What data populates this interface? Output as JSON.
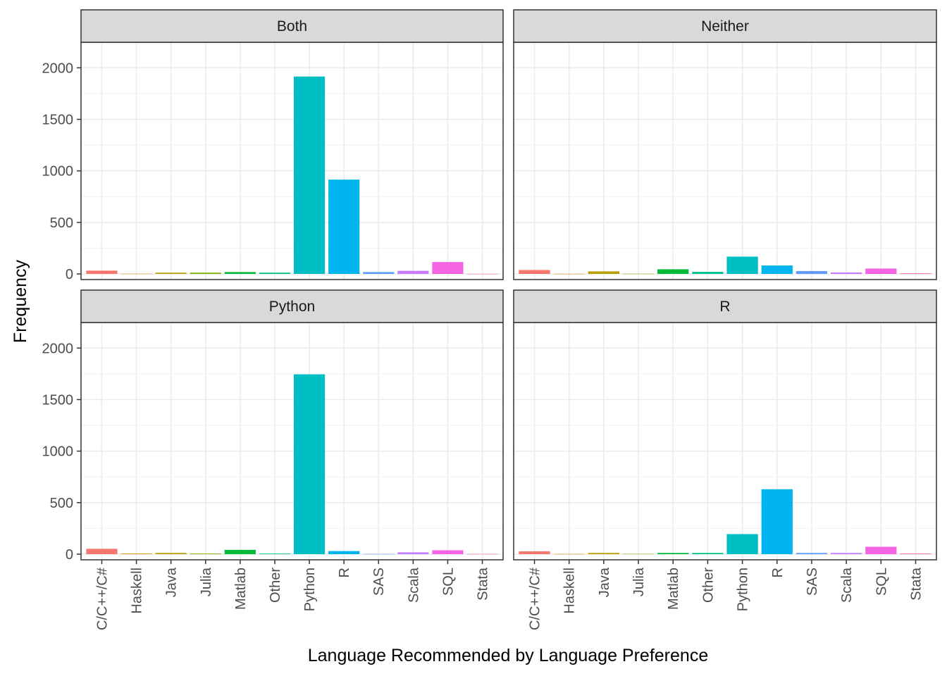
{
  "chart_data": {
    "type": "bar",
    "xlabel": "Language Recommended by Language Preference",
    "ylabel": "Frequency",
    "ylim": [
      0,
      2200
    ],
    "yticks": [
      0,
      500,
      1000,
      1500,
      2000
    ],
    "grid": true,
    "legend": "none",
    "categories": [
      "C/C++/C#",
      "Haskell",
      "Java",
      "Julia",
      "Matlab",
      "Other",
      "Python",
      "R",
      "SAS",
      "Scala",
      "SQL",
      "Stata"
    ],
    "colors": [
      "#F8766D",
      "#DE8C00",
      "#B79F00",
      "#7CAE00",
      "#00BA38",
      "#00C08B",
      "#00BFC4",
      "#00B4F0",
      "#619CFF",
      "#C77CFF",
      "#F564E3",
      "#FF64B0"
    ],
    "panels": [
      {
        "name": "Both",
        "values": [
          32,
          2,
          12,
          12,
          18,
          12,
          1915,
          915,
          18,
          30,
          115,
          1
        ]
      },
      {
        "name": "Neither",
        "values": [
          38,
          1,
          25,
          2,
          45,
          20,
          168,
          82,
          28,
          14,
          52,
          6
        ]
      },
      {
        "name": "Python",
        "values": [
          52,
          6,
          12,
          6,
          42,
          6,
          1745,
          30,
          2,
          18,
          38,
          2
        ]
      },
      {
        "name": "R",
        "values": [
          28,
          2,
          12,
          3,
          12,
          12,
          195,
          630,
          12,
          12,
          72,
          6
        ]
      }
    ]
  }
}
